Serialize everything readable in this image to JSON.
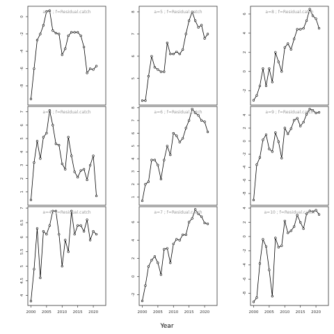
{
  "figure": {
    "xlabel": "Year"
  },
  "chart_data": [
    {
      "type": "line",
      "label": "a=2 ; f=Residual.catch",
      "x": [
        2000,
        2001,
        2002,
        2003,
        2004,
        2005,
        2006,
        2007,
        2008,
        2009,
        2010,
        2011,
        2012,
        2013,
        2014,
        2015,
        2016,
        2017,
        2018,
        2019,
        2020,
        2021
      ],
      "y": [
        -9.5,
        -6.0,
        -2.7,
        -2.0,
        -1.0,
        0.6,
        0.7,
        -1.6,
        -1.9,
        -2.0,
        -4.4,
        -3.7,
        -2.2,
        -1.8,
        -1.8,
        -1.8,
        -2.2,
        -3.5,
        -6.5,
        -6.0,
        -6.1,
        -5.7
      ],
      "ylim": [
        -10.2,
        1.2
      ],
      "yticks": [
        -8,
        -6,
        -4,
        -2,
        0
      ],
      "xlim": [
        1999,
        2024
      ]
    },
    {
      "type": "line",
      "label": "a=3 ; f=Residual.catch",
      "x": [
        2000,
        2001,
        2002,
        2003,
        2004,
        2005,
        2006,
        2007,
        2008,
        2009,
        2010,
        2011,
        2012,
        2013,
        2014,
        2015,
        2016,
        2017,
        2018,
        2019,
        2020,
        2021
      ],
      "y": [
        0.4,
        3.2,
        4.8,
        3.5,
        5.1,
        5.4,
        7.1,
        6.0,
        4.6,
        4.5,
        3.1,
        2.7,
        5.1,
        3.7,
        2.5,
        2.1,
        2.6,
        2.7,
        1.9,
        3.0,
        3.7,
        0.7
      ],
      "ylim": [
        0.0,
        7.4
      ],
      "yticks": [
        1,
        2,
        3,
        4,
        5,
        6,
        7
      ],
      "xlim": [
        1999,
        2024
      ]
    },
    {
      "type": "line",
      "label": "a=4 ; f=Residual.catch",
      "x": [
        2000,
        2001,
        2002,
        2003,
        2004,
        2005,
        2006,
        2007,
        2008,
        2009,
        2010,
        2011,
        2012,
        2013,
        2014,
        2015,
        2016,
        2017,
        2018,
        2019,
        2020,
        2021
      ],
      "y": [
        3.8,
        4.9,
        6.3,
        4.6,
        6.2,
        6.1,
        6.4,
        6.9,
        6.9,
        6.1,
        5.0,
        5.9,
        5.5,
        6.9,
        6.1,
        6.4,
        6.4,
        6.2,
        6.6,
        5.9,
        6.2,
        6.1
      ],
      "ylim": [
        3.65,
        7.05
      ],
      "yticks": [
        4.0,
        4.5,
        5.0,
        5.5,
        6.0,
        6.5,
        7.0
      ],
      "xlim": [
        1999,
        2024
      ]
    },
    {
      "type": "line",
      "label": "a=5 ; f=Residual.catch",
      "x": [
        2000,
        2001,
        2002,
        2003,
        2004,
        2005,
        2006,
        2007,
        2008,
        2009,
        2010,
        2011,
        2012,
        2013,
        2014,
        2015,
        2016,
        2017,
        2018,
        2019,
        2020,
        2021
      ],
      "y": [
        4.0,
        4.0,
        5.1,
        6.0,
        5.5,
        5.4,
        5.3,
        5.3,
        6.6,
        6.1,
        6.1,
        6.2,
        6.1,
        6.3,
        7.0,
        7.6,
        8.0,
        7.6,
        7.3,
        7.4,
        6.8,
        7.0
      ],
      "ylim": [
        3.8,
        8.25
      ],
      "yticks": [
        5,
        6,
        7,
        8
      ],
      "xlim": [
        1999,
        2024
      ]
    },
    {
      "type": "line",
      "label": "a=6 ; f=Residual.catch",
      "x": [
        2000,
        2001,
        2002,
        2003,
        2004,
        2005,
        2006,
        2007,
        2008,
        2009,
        2010,
        2011,
        2012,
        2013,
        2014,
        2015,
        2016,
        2017,
        2018,
        2019,
        2020,
        2021
      ],
      "y": [
        0.7,
        2.0,
        2.2,
        3.9,
        3.9,
        3.5,
        2.4,
        3.9,
        5.0,
        4.3,
        6.0,
        5.8,
        5.3,
        5.6,
        6.4,
        7.0,
        7.9,
        7.6,
        7.4,
        7.0,
        6.9,
        6.1
      ],
      "ylim": [
        0.35,
        8.1
      ],
      "yticks": [
        1,
        2,
        3,
        4,
        5,
        6,
        7,
        8
      ],
      "xlim": [
        1999,
        2024
      ]
    },
    {
      "type": "line",
      "label": "a=7 ; f=Residual.catch",
      "x": [
        2000,
        2001,
        2002,
        2003,
        2004,
        2005,
        2006,
        2007,
        2008,
        2009,
        2010,
        2011,
        2012,
        2013,
        2014,
        2015,
        2016,
        2017,
        2018,
        2019,
        2020,
        2021
      ],
      "y": [
        -2.7,
        -1.0,
        1.1,
        1.8,
        2.2,
        1.5,
        0.2,
        3.0,
        3.1,
        1.5,
        3.6,
        4.1,
        4.0,
        4.6,
        4.6,
        6.0,
        6.4,
        7.4,
        6.9,
        6.6,
        5.9,
        5.8
      ],
      "ylim": [
        -3.2,
        7.7
      ],
      "yticks": [
        -2,
        0,
        2,
        4,
        6
      ],
      "xlim": [
        1999,
        2024
      ]
    },
    {
      "type": "line",
      "label": "a=8 ; f=Residual.catch",
      "x": [
        2000,
        2001,
        2002,
        2003,
        2004,
        2005,
        2006,
        2007,
        2008,
        2009,
        2010,
        2011,
        2012,
        2013,
        2014,
        2015,
        2016,
        2017,
        2018,
        2019,
        2020,
        2021
      ],
      "y": [
        -3.0,
        -2.5,
        -1.5,
        0.3,
        -1.5,
        0.3,
        -1.1,
        2.0,
        1.0,
        0.0,
        2.5,
        2.9,
        2.3,
        3.4,
        4.4,
        4.4,
        4.5,
        5.3,
        6.5,
        5.8,
        5.5,
        4.5
      ],
      "ylim": [
        -3.5,
        6.8
      ],
      "yticks": [
        -2,
        0,
        2,
        4,
        6
      ],
      "xlim": [
        1999,
        2024
      ]
    },
    {
      "type": "line",
      "label": "a=9 ; f=Residual.catch",
      "x": [
        2000,
        2001,
        2002,
        2003,
        2004,
        2005,
        2006,
        2007,
        2008,
        2009,
        2010,
        2011,
        2012,
        2013,
        2014,
        2015,
        2016,
        2017,
        2018,
        2019,
        2020,
        2021
      ],
      "y": [
        -9.0,
        -3.6,
        -2.5,
        0.2,
        1.0,
        -1.2,
        -1.6,
        1.3,
        -0.1,
        -2.6,
        2.0,
        1.1,
        1.9,
        3.2,
        3.5,
        2.3,
        2.9,
        4.1,
        4.9,
        4.7,
        4.3,
        4.4
      ],
      "ylim": [
        -9.8,
        5.3
      ],
      "yticks": [
        -8,
        -6,
        -4,
        -2,
        0,
        2,
        4
      ],
      "xlim": [
        1999,
        2024
      ]
    },
    {
      "type": "line",
      "label": "a=10 ; f=Residual.catch",
      "x": [
        2000,
        2001,
        2002,
        2003,
        2004,
        2005,
        2006,
        2007,
        2008,
        2009,
        2010,
        2011,
        2012,
        2013,
        2014,
        2015,
        2016,
        2017,
        2018,
        2019,
        2020,
        2021
      ],
      "y": [
        -9.2,
        -8.6,
        -3.8,
        -0.4,
        -1.4,
        -4.7,
        -8.4,
        -0.2,
        -1.5,
        -1.3,
        2.2,
        0.5,
        0.8,
        1.4,
        3.0,
        2.0,
        1.1,
        3.2,
        3.6,
        3.5,
        3.7,
        3.1
      ],
      "ylim": [
        -9.7,
        4.2
      ],
      "yticks": [
        -8,
        -6,
        -4,
        -2,
        0,
        2,
        4
      ],
      "xlim": [
        1999,
        2024
      ]
    }
  ]
}
